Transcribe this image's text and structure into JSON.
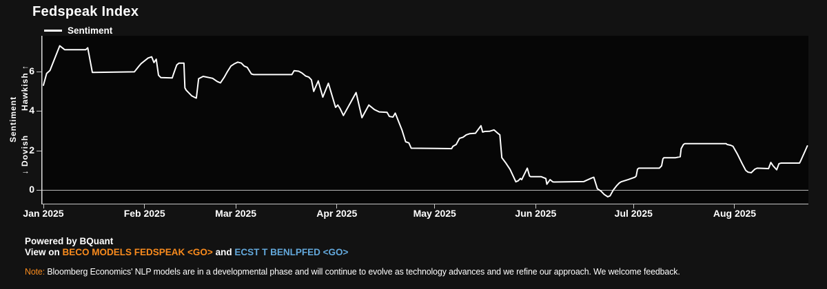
{
  "title": "Fedspeak Index",
  "legend": {
    "label": "Sentiment"
  },
  "y_axis": {
    "axis_label": "Sentiment",
    "hawkish_label": "Hawkish ↑",
    "dovish_label": "↓ Dovish"
  },
  "footer": {
    "powered": "Powered by BQuant",
    "view_prefix": "View on ",
    "link_fedspeak": "BECO MODELS FEDSPEAK <GO>",
    "and_text": " and ",
    "link_ecst": "ECST T BENLPFED <GO>",
    "note_label": "Note:",
    "note_text": " Bloomberg Economics' NLP models are in a developmental phase and will continue to evolve as technology advances and we refine our approach. We welcome feedback."
  },
  "colors": {
    "background": "#121212",
    "plot_background": "#060606",
    "line": "#ffffff",
    "axis": "#c8c8c8",
    "orange": "#f98b1d",
    "blue": "#63a8db",
    "text": "#ffffff"
  },
  "chart_data": {
    "type": "line",
    "title": "Fedspeak Index",
    "ylabel": "Sentiment",
    "y_direction_labels": {
      "up": "Hawkish ↑",
      "down": "↓ Dovish"
    },
    "legend_position": "top-left",
    "grid": "zero-line-only",
    "ylim": [
      -0.73,
      7.8
    ],
    "xlim_days": [
      0,
      234.7
    ],
    "y_ticks": [
      6,
      4,
      2,
      0
    ],
    "x_ticks": [
      {
        "day": 0,
        "label": "Jan 2025"
      },
      {
        "day": 31,
        "label": "Feb 2025"
      },
      {
        "day": 59,
        "label": "Mar 2025"
      },
      {
        "day": 90,
        "label": "Apr 2025"
      },
      {
        "day": 120,
        "label": "May 2025"
      },
      {
        "day": 151,
        "label": "Jun 2025"
      },
      {
        "day": 181,
        "label": "Jul 2025"
      },
      {
        "day": 212,
        "label": "Aug 2025"
      }
    ],
    "series": [
      {
        "name": "Sentiment",
        "color": "#ffffff",
        "x_unit": "days since Jan 1 2025",
        "points": [
          [
            0,
            5.3
          ],
          [
            1,
            5.9
          ],
          [
            2,
            6.05
          ],
          [
            5,
            7.3
          ],
          [
            6.5,
            7.1
          ],
          [
            13,
            7.1
          ],
          [
            13.6,
            7.2
          ],
          [
            15,
            5.95
          ],
          [
            27.9,
            5.98
          ],
          [
            29.3,
            6.27
          ],
          [
            30,
            6.4
          ],
          [
            32.1,
            6.68
          ],
          [
            33.2,
            6.74
          ],
          [
            33.9,
            6.45
          ],
          [
            34.6,
            6.62
          ],
          [
            35.3,
            5.81
          ],
          [
            36,
            5.69
          ],
          [
            39.5,
            5.67
          ],
          [
            39.9,
            5.87
          ],
          [
            40.9,
            6.33
          ],
          [
            41.6,
            6.42
          ],
          [
            43.1,
            6.42
          ],
          [
            43.4,
            5.17
          ],
          [
            43.8,
            5.05
          ],
          [
            45.5,
            4.76
          ],
          [
            46.6,
            4.67
          ],
          [
            46.9,
            4.65
          ],
          [
            47.6,
            5.63
          ],
          [
            49,
            5.75
          ],
          [
            51.9,
            5.65
          ],
          [
            53.3,
            5.49
          ],
          [
            54.3,
            5.42
          ],
          [
            55.4,
            5.69
          ],
          [
            56.4,
            5.98
          ],
          [
            57.5,
            6.27
          ],
          [
            58.6,
            6.39
          ],
          [
            59.6,
            6.47
          ],
          [
            60.7,
            6.42
          ],
          [
            61.6,
            6.27
          ],
          [
            62.5,
            6.21
          ],
          [
            63.8,
            5.87
          ],
          [
            64.5,
            5.84
          ],
          [
            76.2,
            5.84
          ],
          [
            76.9,
            6.04
          ],
          [
            78.3,
            6.01
          ],
          [
            79.3,
            5.92
          ],
          [
            80.4,
            5.77
          ],
          [
            81.4,
            5.71
          ],
          [
            82.2,
            5.57
          ],
          [
            82.9,
            4.99
          ],
          [
            84.3,
            5.52
          ],
          [
            85.7,
            4.7
          ],
          [
            87.4,
            5.4
          ],
          [
            89.6,
            4.18
          ],
          [
            90.3,
            4.3
          ],
          [
            91,
            4.12
          ],
          [
            92,
            3.77
          ],
          [
            95.9,
            4.93
          ],
          [
            97.7,
            3.66
          ],
          [
            99.8,
            4.3
          ],
          [
            101.5,
            4.07
          ],
          [
            103,
            3.95
          ],
          [
            105.4,
            3.93
          ],
          [
            106.1,
            3.72
          ],
          [
            107.2,
            3.69
          ],
          [
            107.9,
            3.89
          ],
          [
            110,
            3.02
          ],
          [
            111.1,
            2.44
          ],
          [
            112.1,
            2.38
          ],
          [
            112.8,
            2.11
          ],
          [
            125.2,
            2.09
          ],
          [
            125.6,
            2.21
          ],
          [
            126.6,
            2.3
          ],
          [
            127.6,
            2.61
          ],
          [
            128.7,
            2.67
          ],
          [
            129.7,
            2.79
          ],
          [
            130.8,
            2.85
          ],
          [
            132.5,
            2.87
          ],
          [
            134.2,
            3.25
          ],
          [
            134.7,
            2.93
          ],
          [
            135.4,
            2.96
          ],
          [
            136.8,
            2.97
          ],
          [
            138.2,
            3.04
          ],
          [
            139.5,
            2.85
          ],
          [
            140,
            2.79
          ],
          [
            140.6,
            1.63
          ],
          [
            141.7,
            1.39
          ],
          [
            143.1,
            1.05
          ],
          [
            144.9,
            0.41
          ],
          [
            145.6,
            0.46
          ],
          [
            146.3,
            0.58
          ],
          [
            146.7,
            0.52
          ],
          [
            148.4,
            1.1
          ],
          [
            149.1,
            0.7
          ],
          [
            149.5,
            0.67
          ],
          [
            152.7,
            0.67
          ],
          [
            154.1,
            0.58
          ],
          [
            154.4,
            0.29
          ],
          [
            155.4,
            0.52
          ],
          [
            156.2,
            0.41
          ],
          [
            156.6,
            0.4
          ],
          [
            165.7,
            0.42
          ],
          [
            168.1,
            0.6
          ],
          [
            168.8,
            0.64
          ],
          [
            169.9,
            0.06
          ],
          [
            171,
            -0.06
          ],
          [
            172,
            -0.23
          ],
          [
            173.1,
            -0.35
          ],
          [
            173.8,
            -0.3
          ],
          [
            174.8,
            0
          ],
          [
            175.9,
            0.23
          ],
          [
            176.6,
            0.35
          ],
          [
            177.2,
            0.41
          ],
          [
            179.3,
            0.52
          ],
          [
            181.4,
            0.64
          ],
          [
            181.8,
            0.7
          ],
          [
            182.2,
            1.05
          ],
          [
            182.6,
            1.1
          ],
          [
            188.9,
            1.1
          ],
          [
            189.6,
            1.22
          ],
          [
            190,
            1.57
          ],
          [
            190.3,
            1.63
          ],
          [
            193.9,
            1.63
          ],
          [
            195.3,
            1.68
          ],
          [
            195.6,
            2.09
          ],
          [
            196.3,
            2.3
          ],
          [
            196.7,
            2.34
          ],
          [
            209.4,
            2.34
          ],
          [
            209.7,
            2.3
          ],
          [
            210.8,
            2.26
          ],
          [
            211.5,
            2.21
          ],
          [
            212.9,
            1.8
          ],
          [
            214.3,
            1.33
          ],
          [
            215.4,
            0.99
          ],
          [
            216.1,
            0.9
          ],
          [
            217.1,
            0.87
          ],
          [
            218.2,
            1.05
          ],
          [
            218.9,
            1.1
          ],
          [
            222.4,
            1.08
          ],
          [
            223.1,
            1.39
          ],
          [
            223.8,
            1.22
          ],
          [
            224.9,
            1.02
          ],
          [
            225.6,
            1.33
          ],
          [
            226.3,
            1.36
          ],
          [
            231.9,
            1.36
          ],
          [
            232.2,
            1.45
          ],
          [
            233.6,
            1.97
          ],
          [
            234.3,
            2.23
          ]
        ]
      }
    ]
  }
}
